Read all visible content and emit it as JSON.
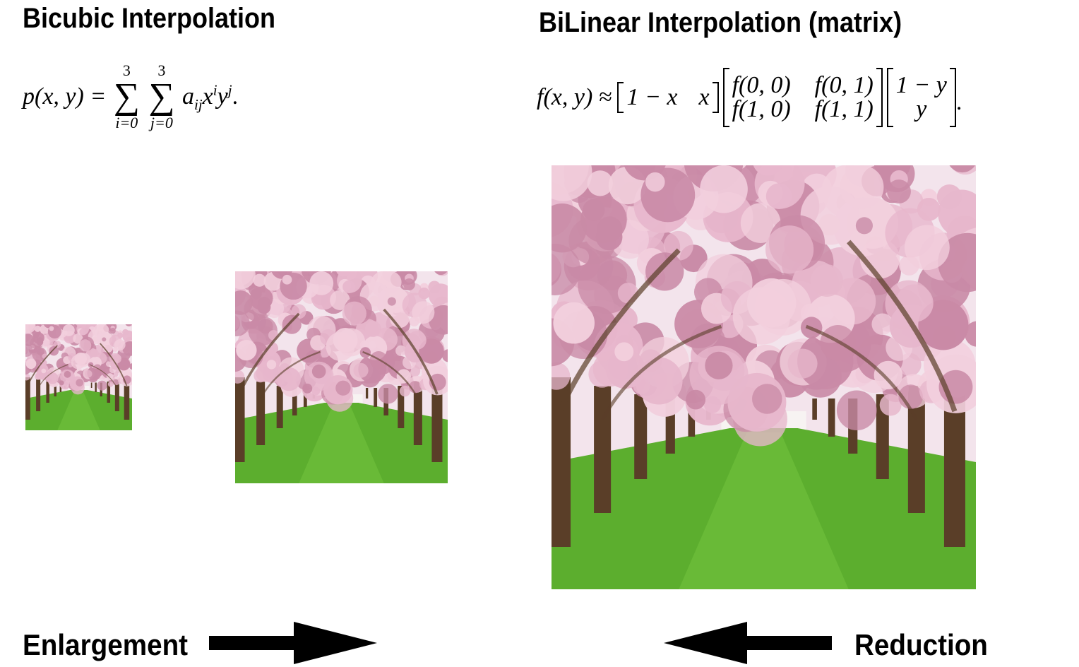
{
  "left": {
    "title": "Bicubic Interpolation",
    "formula": {
      "lhs": "p(x, y) =",
      "sum_upper_1": "3",
      "sum_lower_1": "i=0",
      "sum_upper_2": "3",
      "sum_lower_2": "j=0",
      "sigma": "∑",
      "term_a": "a",
      "term_a_sub": "ij",
      "term_x": "x",
      "term_x_sup": "i",
      "term_y": "y",
      "term_y_sup": "j",
      "end": "."
    }
  },
  "right": {
    "title": "BiLinear Interpolation (matrix)",
    "formula": {
      "lhs": "f(x, y) ≈",
      "row_vector": [
        "1 − x",
        "x"
      ],
      "matrix": [
        "f(0, 0)",
        "f(0, 1)",
        "f(1, 0)",
        "f(1, 1)"
      ],
      "col_vector": [
        "1 − y",
        "y"
      ],
      "end": "."
    }
  },
  "footer": {
    "enlargement_label": "Enlargement",
    "reduction_label": "Reduction"
  },
  "images": [
    {
      "name": "small-cherry-blossom-image",
      "scene": "cherry blossom tree avenue with grass path"
    },
    {
      "name": "medium-cherry-blossom-image",
      "scene": "cherry blossom tree avenue with grass path"
    },
    {
      "name": "large-cherry-blossom-image",
      "scene": "cherry blossom tree avenue with grass path"
    }
  ],
  "colors": {
    "blossom": "#e7b7cc",
    "blossom_dark": "#c98aa6",
    "grass": "#5cae2e",
    "trunk": "#5a3e28",
    "arrow": "#000000"
  }
}
